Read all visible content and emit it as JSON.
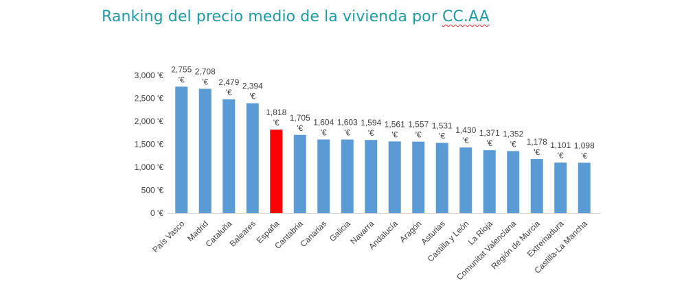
{
  "title": {
    "text": "Ranking del precio medio de la vivienda por ",
    "underlined": "CC.AA"
  },
  "colors": {
    "title": "#1f9aa2",
    "bar": "#5b9bd5",
    "highlight": "#ff0000",
    "axis": "#d9d9d9",
    "text": "#404040"
  },
  "chart_data": {
    "type": "bar",
    "title": "Ranking del precio medio de la vivienda por CC.AA",
    "xlabel": "",
    "ylabel": "",
    "ylim": [
      0,
      3000
    ],
    "yticks": [
      0,
      500,
      1000,
      1500,
      2000,
      2500,
      3000
    ],
    "ytick_labels": [
      "0 '€",
      "500 '€",
      "1,000 '€",
      "1,500 '€",
      "2,000 '€",
      "2,500 '€",
      "3,000 '€"
    ],
    "grid": false,
    "categories": [
      "País Vasco",
      "Madrid",
      "Cataluña",
      "Baleares",
      "España",
      "Cantabria",
      "Canarias",
      "Galicia",
      "Navarra",
      "Andalucía",
      "Aragón",
      "Asturias",
      "Castilla y León",
      "La Rioja",
      "Comunitat Valenciana",
      "Región de Murcia",
      "Extremadura",
      "Castilla-La Mancha"
    ],
    "values": [
      2755,
      2708,
      2479,
      2394,
      1818,
      1705,
      1604,
      1603,
      1594,
      1561,
      1557,
      1531,
      1430,
      1371,
      1352,
      1178,
      1101,
      1098
    ],
    "value_labels": [
      "2,755",
      "2,708",
      "2,479",
      "2,394",
      "1,818",
      "1,705",
      "1,604",
      "1,603",
      "1,594",
      "1,561",
      "1,557",
      "1,531",
      "1,430",
      "1,371",
      "1,352",
      "1,178",
      "1,101",
      "1,098"
    ],
    "value_suffix": "'€",
    "highlight": "España"
  }
}
